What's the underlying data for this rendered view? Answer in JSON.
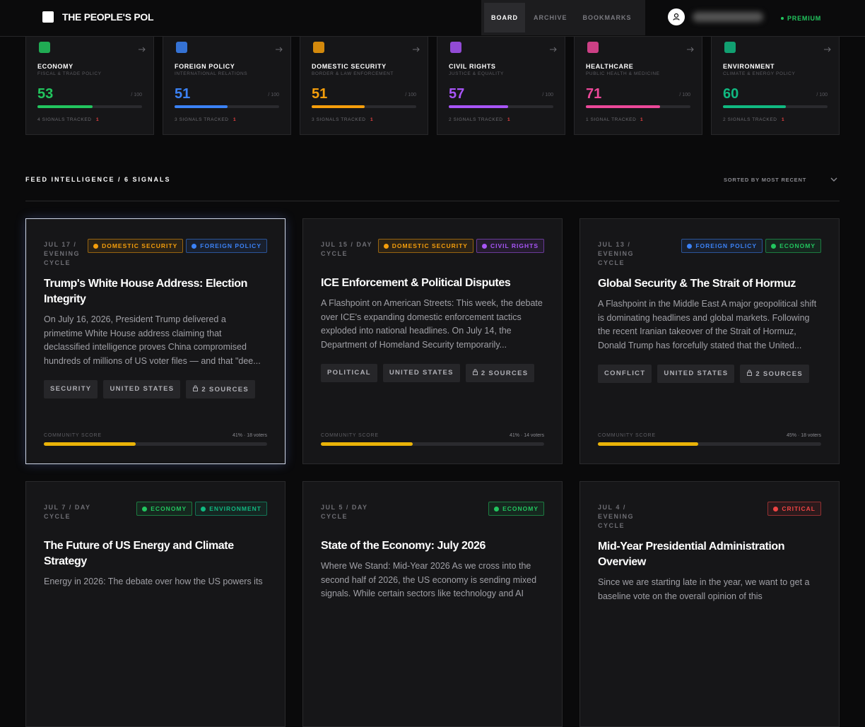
{
  "header": {
    "brand": "THE PEOPLE'S POL",
    "nav": [
      "BOARD",
      "ARCHIVE",
      "BOOKMARKS"
    ],
    "active_nav": 0,
    "plan": "PREMIUM"
  },
  "categories": [
    {
      "name": "ECONOMY",
      "subtitle": "FISCAL & TRADE POLICY",
      "score": 53,
      "max": {
        "value": 100,
        "label": "/ 100"
      },
      "signals": "4 SIGNALS TRACKED",
      "alerts": "1",
      "color": "#22c55e"
    },
    {
      "name": "FOREIGN POLICY",
      "subtitle": "INTERNATIONAL RELATIONS",
      "score": 51,
      "max": {
        "value": 100,
        "label": "/ 100"
      },
      "signals": "3 SIGNALS TRACKED",
      "alerts": "1",
      "color": "#3b82f6"
    },
    {
      "name": "DOMESTIC SECURITY",
      "subtitle": "BORDER & LAW ENFORCEMENT",
      "score": 51,
      "max": {
        "value": 100,
        "label": "/ 100"
      },
      "signals": "3 SIGNALS TRACKED",
      "alerts": "1",
      "color": "#f59e0b"
    },
    {
      "name": "CIVIL RIGHTS",
      "subtitle": "JUSTICE & EQUALITY",
      "score": 57,
      "max": {
        "value": 100,
        "label": "/ 100"
      },
      "signals": "2 SIGNALS TRACKED",
      "alerts": "1",
      "color": "#a855f7"
    },
    {
      "name": "HEALTHCARE",
      "subtitle": "PUBLIC HEALTH & MEDICINE",
      "score": 71,
      "max": {
        "value": 100,
        "label": "/ 100"
      },
      "signals": "1 SIGNAL TRACKED",
      "alerts": "1",
      "color": "#ec4899"
    },
    {
      "name": "ENVIRONMENT",
      "subtitle": "CLIMATE & ENERGY POLICY",
      "score": 60,
      "max": {
        "value": 100,
        "label": "/ 100"
      },
      "signals": "2 SIGNALS TRACKED",
      "alerts": "1",
      "color": "#10b981"
    }
  ],
  "feed": {
    "title": "FEED INTELLIGENCE / 6 SIGNALS",
    "sort": "SORTED BY MOST RECENT",
    "cards": [
      {
        "date": "JUL 17 / EVENING CYCLE",
        "tags": [
          {
            "name": "DOMESTIC SECURITY",
            "color": "#f59e0b"
          },
          {
            "name": "FOREIGN POLICY",
            "color": "#3b82f6"
          }
        ],
        "title": "Trump's White House Address: Election Integrity",
        "excerpt": "On July 16, 2026, President Trump delivered a primetime White House address claiming that declassified intelligence proves China compromised hundreds of millions of US voter files — and that \"dee...",
        "keywords": [
          "SECURITY",
          "UNITED STATES"
        ],
        "sources": "2 SOURCES",
        "score_label": "COMMUNITY SCORE",
        "score": {
          "value": 41,
          "label": "41% · 18 voters"
        },
        "selected": true
      },
      {
        "date": "JUL 15 / DAY CYCLE",
        "tags": [
          {
            "name": "DOMESTIC SECURITY",
            "color": "#f59e0b"
          },
          {
            "name": "CIVIL RIGHTS",
            "color": "#a855f7"
          }
        ],
        "title": "ICE Enforcement & Political Disputes",
        "excerpt": "A Flashpoint on American Streets: This week, the debate over ICE's expanding domestic enforcement tactics exploded into national headlines. On July 14, the Department of Homeland Security temporarily...",
        "keywords": [
          "POLITICAL",
          "UNITED STATES"
        ],
        "sources": "2 SOURCES",
        "score_label": "COMMUNITY SCORE",
        "score": {
          "value": 41,
          "label": "41% · 14 voters"
        }
      },
      {
        "date": "JUL 13 / EVENING CYCLE",
        "tags": [
          {
            "name": "FOREIGN POLICY",
            "color": "#3b82f6"
          },
          {
            "name": "ECONOMY",
            "color": "#22c55e"
          }
        ],
        "title": "Global Security & The Strait of Hormuz",
        "excerpt": "A Flashpoint in the Middle East A major geopolitical shift is dominating headlines and global markets. Following the recent Iranian takeover of the Strait of Hormuz, Donald Trump has forcefully stated that the United...",
        "keywords": [
          "CONFLICT",
          "UNITED STATES"
        ],
        "sources": "2 SOURCES",
        "score_label": "COMMUNITY SCORE",
        "score": {
          "value": 45,
          "label": "45% · 18 voters"
        }
      },
      {
        "date": "JUL 7 / DAY CYCLE",
        "tags": [
          {
            "name": "ECONOMY",
            "color": "#22c55e"
          },
          {
            "name": "ENVIRONMENT",
            "color": "#10b981"
          }
        ],
        "title": "The Future of US Energy and Climate Strategy",
        "excerpt": "Energy in 2026: The debate over how the US powers its"
      },
      {
        "date": "JUL 5 / DAY CYCLE",
        "tags": [
          {
            "name": "ECONOMY",
            "color": "#22c55e"
          }
        ],
        "title": "State of the Economy: July 2026",
        "excerpt": "Where We Stand: Mid-Year 2026 As we cross into the second half of 2026, the US economy is sending mixed signals. While certain sectors like technology and AI"
      },
      {
        "date": "JUL 4 / EVENING CYCLE",
        "tags": [
          {
            "name": "CRITICAL",
            "color": "#ef4444"
          }
        ],
        "title": "Mid-Year Presidential Administration Overview",
        "excerpt": "Since we are starting late in the year, we want to get a baseline vote on the overall opinion of this"
      }
    ]
  }
}
